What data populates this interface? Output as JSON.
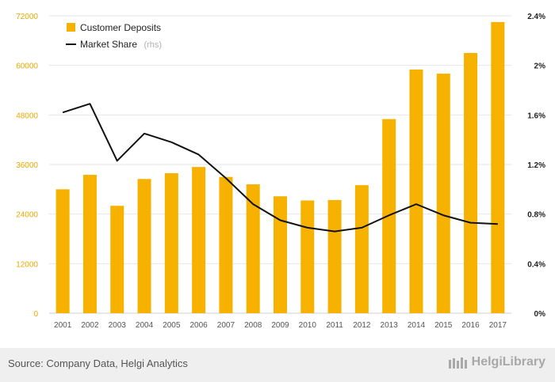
{
  "chart_data": {
    "type": "bar+line",
    "title": "",
    "categories": [
      "2001",
      "2002",
      "2003",
      "2004",
      "2005",
      "2006",
      "2007",
      "2008",
      "2009",
      "2010",
      "2011",
      "2012",
      "2013",
      "2014",
      "2015",
      "2016",
      "2017"
    ],
    "series": [
      {
        "name": "Customer Deposits",
        "type": "bar",
        "axis": "left",
        "color": "#f7b200",
        "values": [
          30000,
          33500,
          26000,
          32500,
          33900,
          35400,
          33000,
          31200,
          28300,
          27300,
          27400,
          31000,
          47000,
          59000,
          58000,
          63000,
          70500
        ]
      },
      {
        "name": "Market Share",
        "name_suffix": "(rhs)",
        "type": "line",
        "axis": "right",
        "color": "#111111",
        "values": [
          1.62,
          1.69,
          1.23,
          1.45,
          1.38,
          1.28,
          1.09,
          0.88,
          0.75,
          0.69,
          0.66,
          0.69,
          0.79,
          0.88,
          0.79,
          0.73,
          0.72
        ]
      }
    ],
    "y_left": {
      "ylim": [
        0,
        72000
      ],
      "ticks": [
        "0",
        "12000",
        "24000",
        "36000",
        "48000",
        "60000",
        "72000"
      ],
      "values": [
        0,
        12000,
        24000,
        36000,
        48000,
        60000,
        72000
      ]
    },
    "y_right": {
      "ylim": [
        0,
        2.4
      ],
      "ticks": [
        "0%",
        "0.4%",
        "0.8%",
        "1.2%",
        "1.6%",
        "2%",
        "2.4%"
      ],
      "values": [
        0,
        0.4,
        0.8,
        1.2,
        1.6,
        2.0,
        2.4
      ]
    },
    "grid": true,
    "legend": "top-left"
  },
  "footer": {
    "source": "Source: Company Data, Helgi Analytics",
    "brand": "HelgiLibrary"
  }
}
